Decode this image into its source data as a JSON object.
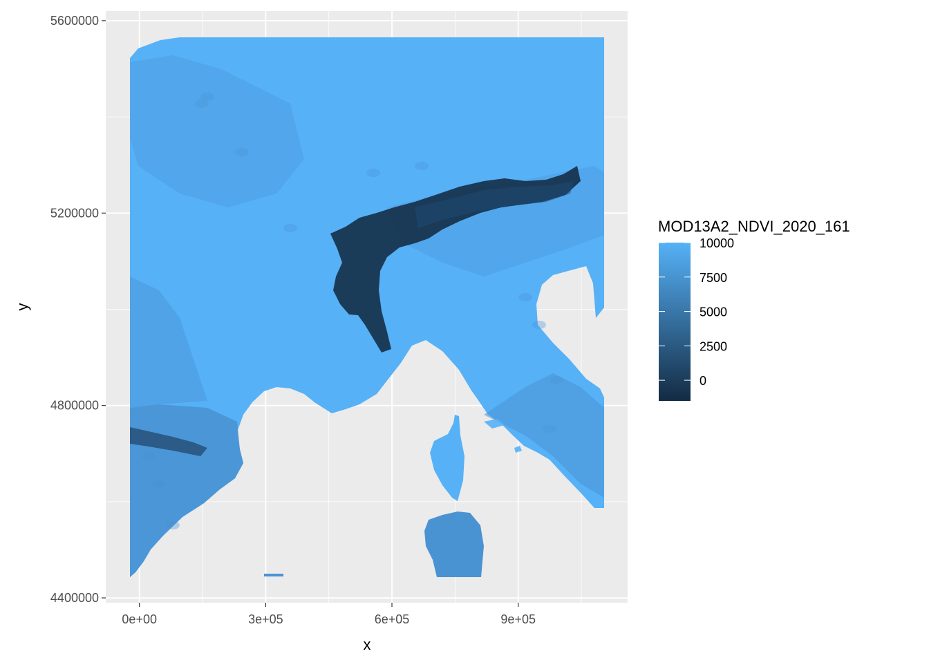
{
  "chart_data": {
    "type": "heatmap",
    "title": "",
    "xlabel": "x",
    "ylabel": "y",
    "xlim": [
      -80000,
      1160000
    ],
    "ylim": [
      4390000,
      5620000
    ],
    "x_ticks": [
      {
        "value": 0,
        "label": "0e+00"
      },
      {
        "value": 300000,
        "label": "3e+05"
      },
      {
        "value": 600000,
        "label": "6e+05"
      },
      {
        "value": 900000,
        "label": "9e+05"
      }
    ],
    "x_minor_ticks": [
      150000,
      450000,
      750000,
      1050000
    ],
    "y_ticks": [
      {
        "value": 4400000,
        "label": "4400000"
      },
      {
        "value": 4800000,
        "label": "4800000"
      },
      {
        "value": 5200000,
        "label": "5200000"
      },
      {
        "value": 5600000,
        "label": "5600000"
      }
    ],
    "y_minor_ticks": [
      4600000,
      5000000,
      5400000
    ],
    "raster_extent": {
      "xmin": 0,
      "xmax": 1107000,
      "ymin": 4443000,
      "ymax": 5556000
    },
    "grid": true,
    "legend": {
      "title": "MOD13A2_NDVI_2020_161",
      "placement": "right",
      "range": [
        -1500,
        10000
      ],
      "breaks": [
        {
          "value": 10000,
          "label": "10000"
        },
        {
          "value": 7500,
          "label": "7500"
        },
        {
          "value": 5000,
          "label": "5000"
        },
        {
          "value": 2500,
          "label": "2500"
        },
        {
          "value": 0,
          "label": "0"
        }
      ],
      "colors": {
        "low": "#132B43",
        "high": "#56B1F7"
      }
    },
    "colors": {
      "panel_background": "#EBEBEB",
      "grid_major": "#FFFFFF",
      "axis_text": "#4D4D4D",
      "axis_title": "#000000",
      "raster_high": "#56B1F7",
      "raster_mid": "#4A93D3",
      "raster_low": "#132B43"
    }
  }
}
